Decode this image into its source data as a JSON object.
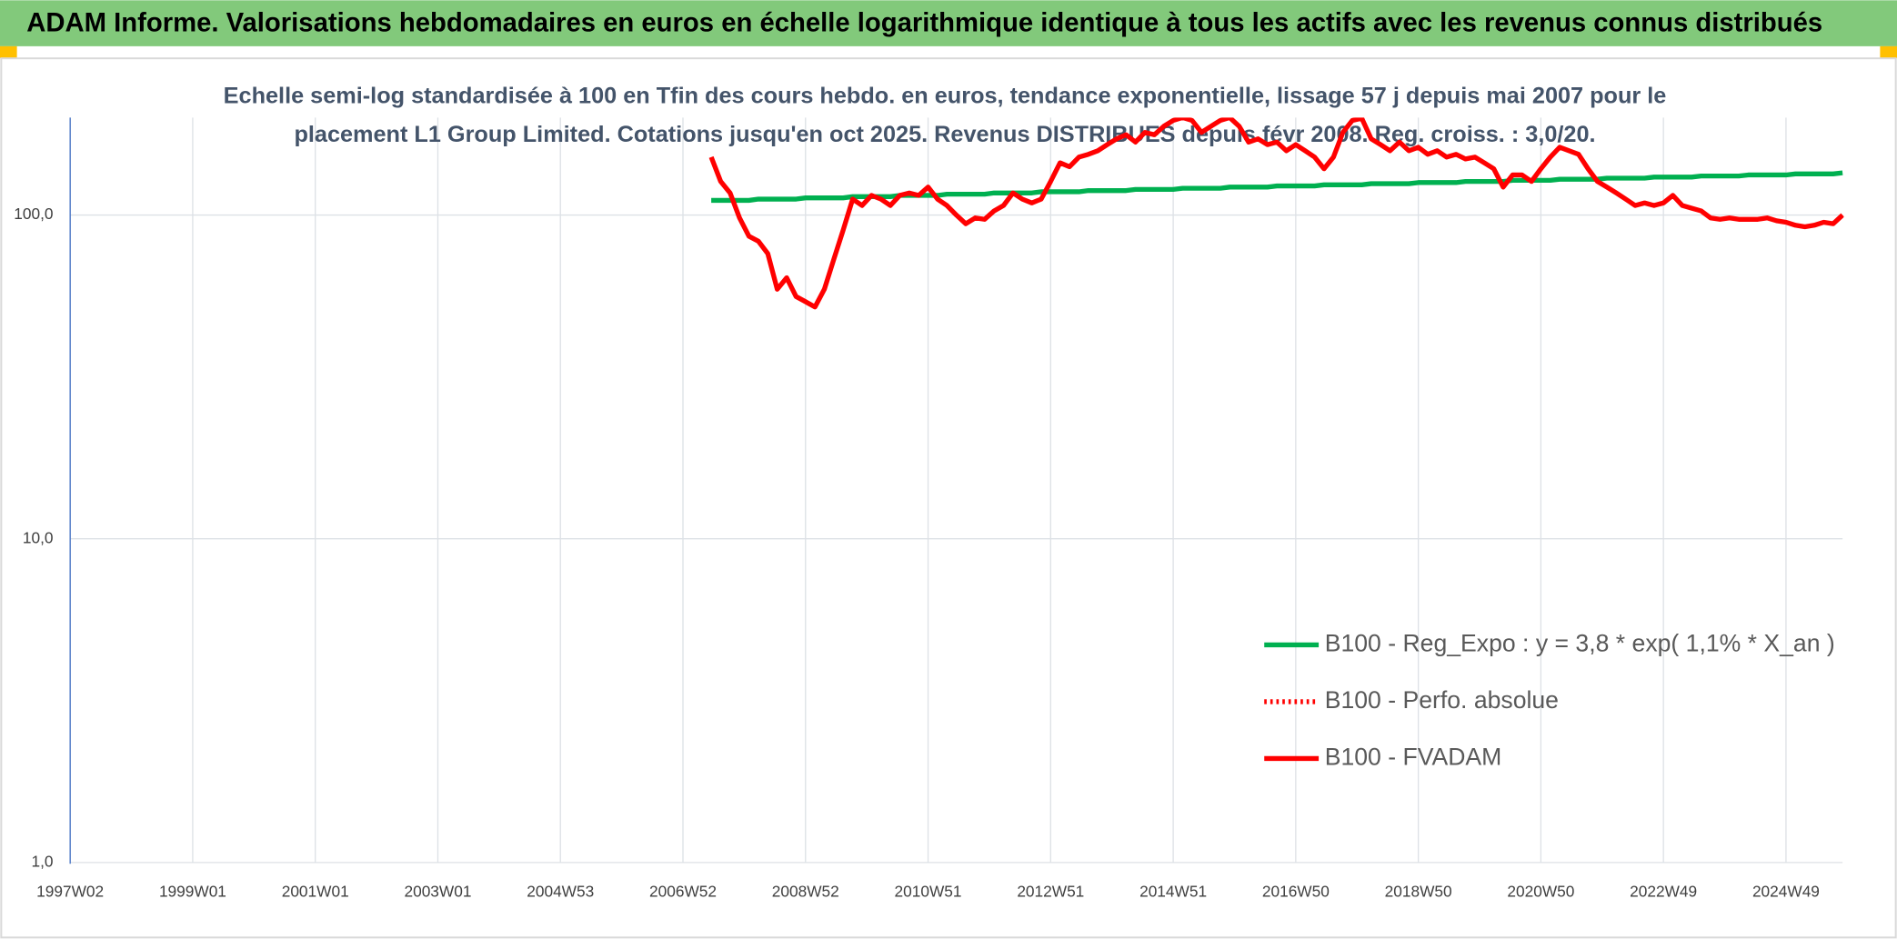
{
  "chart_data": {
    "type": "line",
    "title": "ADAM Informe. Valorisations hebdomadaires en euros en échelle logarithmique identique à tous les actifs avec les revenus connus distribués",
    "subtitle": [
      "Echelle semi-log standardisée à 100 en Tfin des cours hebdo. en euros, tendance exponentielle, lissage 57 j depuis mai 2007 pour le",
      "placement L1 Group Limited. Cotations jusqu'en oct 2025. Revenus DISTRIBUES depuis févr 2008. Reg. croiss. : 3,0/20."
    ],
    "log_y": true,
    "grid": true,
    "legend": "right",
    "ylim": [
      1,
      200
    ],
    "yticks": [
      {
        "value": 1,
        "label": "1,0"
      },
      {
        "value": 10,
        "label": "10,0"
      },
      {
        "value": 100,
        "label": "100,0"
      }
    ],
    "categories": [
      "1997W02",
      null,
      null,
      null,
      null,
      null,
      null,
      null,
      null,
      null,
      null,
      null,
      null,
      "1999W01",
      null,
      null,
      null,
      null,
      null,
      null,
      null,
      null,
      null,
      null,
      null,
      null,
      "2001W01",
      null,
      null,
      null,
      null,
      null,
      null,
      null,
      null,
      null,
      null,
      null,
      null,
      "2003W01",
      null,
      null,
      null,
      null,
      null,
      null,
      null,
      null,
      null,
      null,
      null,
      null,
      "2004W53",
      null,
      null,
      null,
      null,
      null,
      null,
      null,
      null,
      null,
      null,
      null,
      null,
      "2006W52",
      null,
      null,
      null,
      null,
      null,
      null,
      null,
      null,
      null,
      null,
      null,
      null,
      "2008W52",
      null,
      null,
      null,
      null,
      null,
      null,
      null,
      null,
      null,
      null,
      null,
      null,
      "2010W51",
      null,
      null,
      null,
      null,
      null,
      null,
      null,
      null,
      null,
      null,
      null,
      null,
      "2012W51",
      null,
      null,
      null,
      null,
      null,
      null,
      null,
      null,
      null,
      null,
      null,
      null,
      "2014W51",
      null,
      null,
      null,
      null,
      null,
      null,
      null,
      null,
      null,
      null,
      null,
      null,
      "2016W50",
      null,
      null,
      null,
      null,
      null,
      null,
      null,
      null,
      null,
      null,
      null,
      null,
      "2018W50",
      null,
      null,
      null,
      null,
      null,
      null,
      null,
      null,
      null,
      null,
      null,
      null,
      "2020W50",
      null,
      null,
      null,
      null,
      null,
      null,
      null,
      null,
      null,
      null,
      null,
      null,
      "2022W49",
      null,
      null,
      null,
      null,
      null,
      null,
      null,
      null,
      null,
      null,
      null,
      null,
      "2024W49",
      null,
      null,
      null,
      null,
      null,
      null
    ],
    "series": [
      {
        "name": "B100 - Reg_Expo : y = 3,8 * exp( 1,1% *  X_an )",
        "color": "#00b050",
        "style": "solid",
        "values": [
          null,
          null,
          null,
          null,
          null,
          null,
          null,
          null,
          null,
          null,
          null,
          null,
          null,
          null,
          null,
          null,
          null,
          null,
          null,
          null,
          null,
          null,
          null,
          null,
          null,
          null,
          null,
          null,
          null,
          null,
          null,
          null,
          null,
          null,
          null,
          null,
          null,
          null,
          null,
          null,
          null,
          null,
          null,
          null,
          null,
          null,
          null,
          null,
          null,
          null,
          null,
          null,
          null,
          null,
          null,
          null,
          null,
          null,
          null,
          null,
          null,
          null,
          null,
          null,
          null,
          null,
          null,
          null,
          111,
          111,
          111,
          111,
          111,
          112,
          112,
          112,
          112,
          112,
          113,
          113,
          113,
          113,
          113,
          114,
          114,
          114,
          114,
          114,
          115,
          115,
          115,
          115,
          115,
          116,
          116,
          116,
          116,
          116,
          117,
          117,
          117,
          117,
          117,
          118,
          118,
          118,
          118,
          118,
          119,
          119,
          119,
          119,
          119,
          120,
          120,
          120,
          120,
          120,
          121,
          121,
          121,
          121,
          121,
          122,
          122,
          122,
          122,
          122,
          123,
          123,
          123,
          123,
          123,
          124,
          124,
          124,
          124,
          124,
          125,
          125,
          125,
          125,
          125,
          126,
          126,
          126,
          126,
          126,
          127,
          127,
          127,
          127,
          127,
          128,
          128,
          128,
          128,
          128,
          129,
          129,
          129,
          129,
          129,
          130,
          130,
          130,
          130,
          130,
          131,
          131,
          131,
          131,
          131,
          132,
          132,
          132,
          132,
          132,
          133,
          133,
          133,
          133,
          133,
          134,
          134,
          134,
          134,
          134,
          135
        ]
      },
      {
        "name": "B100 - Perfo. absolue",
        "color": "#ff0000",
        "style": "dotted",
        "values": [
          null,
          null,
          null,
          null,
          null,
          null,
          null,
          null,
          null,
          null,
          null,
          null,
          null,
          null,
          null,
          null,
          null,
          null,
          null,
          null,
          null,
          null,
          null,
          null,
          null,
          null,
          null,
          null,
          null,
          null,
          null,
          null,
          null,
          null,
          null,
          null,
          null,
          null,
          null,
          null,
          null,
          null,
          null,
          null,
          null,
          null,
          null,
          null,
          null,
          null,
          null,
          null,
          null,
          null,
          null,
          null,
          null,
          null,
          null,
          null,
          null,
          null,
          null,
          null,
          null,
          null,
          null,
          null,
          null,
          null,
          null,
          null,
          null,
          null,
          null,
          null,
          null,
          null,
          null,
          null,
          null,
          null,
          null,
          null,
          null,
          null,
          null,
          null,
          null,
          null,
          null,
          null,
          null,
          null,
          null,
          null,
          null,
          null,
          null,
          null,
          null,
          null,
          null,
          null,
          null,
          null,
          null,
          null,
          null,
          null,
          null,
          null,
          null,
          null,
          null,
          null,
          null,
          null,
          null,
          null,
          null,
          null,
          null,
          null,
          null,
          null,
          null,
          null,
          null,
          null,
          null,
          null,
          null,
          null,
          null,
          null,
          null,
          null,
          null,
          null,
          null,
          null,
          null,
          null,
          null,
          null,
          null,
          null,
          null,
          null,
          null,
          null,
          null,
          null,
          null,
          null,
          null,
          null,
          null,
          null,
          null,
          null,
          null,
          null,
          null,
          null,
          null,
          null,
          null,
          null,
          null,
          null,
          null,
          null,
          null,
          null,
          null,
          null,
          null,
          null,
          null,
          null,
          null,
          null,
          null,
          null,
          null,
          null,
          null
        ]
      },
      {
        "name": "B100 - FVADAM",
        "color": "#ff0000",
        "style": "solid",
        "values": [
          null,
          null,
          null,
          null,
          null,
          null,
          null,
          null,
          null,
          null,
          null,
          null,
          null,
          null,
          null,
          null,
          null,
          null,
          null,
          null,
          null,
          null,
          null,
          null,
          null,
          null,
          null,
          null,
          null,
          null,
          null,
          null,
          null,
          null,
          null,
          null,
          null,
          null,
          null,
          null,
          null,
          null,
          null,
          null,
          null,
          null,
          null,
          null,
          null,
          null,
          null,
          null,
          null,
          null,
          null,
          null,
          null,
          null,
          null,
          null,
          null,
          null,
          null,
          null,
          null,
          null,
          null,
          null,
          151,
          127,
          117,
          98,
          86,
          83,
          76,
          59,
          64,
          56,
          54,
          52,
          59,
          73,
          90,
          112,
          107,
          115,
          112,
          107,
          115,
          117,
          115,
          122,
          112,
          107,
          100,
          94,
          98,
          97,
          103,
          107,
          117,
          112,
          109,
          112,
          127,
          145,
          141,
          151,
          154,
          158,
          165,
          172,
          177,
          168,
          180,
          177,
          188,
          196,
          200,
          196,
          180,
          188,
          196,
          200,
          188,
          168,
          172,
          165,
          168,
          158,
          165,
          158,
          151,
          139,
          151,
          180,
          196,
          199,
          172,
          165,
          158,
          168,
          158,
          162,
          154,
          158,
          151,
          154,
          149,
          151,
          145,
          139,
          122,
          133,
          133,
          127,
          139,
          151,
          162,
          158,
          154,
          139,
          127,
          122,
          117,
          112,
          107,
          109,
          107,
          109,
          115,
          107,
          105,
          103,
          98,
          97,
          98,
          97,
          97,
          97,
          98,
          96,
          95,
          93,
          92,
          93,
          95,
          94,
          100
        ]
      }
    ]
  }
}
